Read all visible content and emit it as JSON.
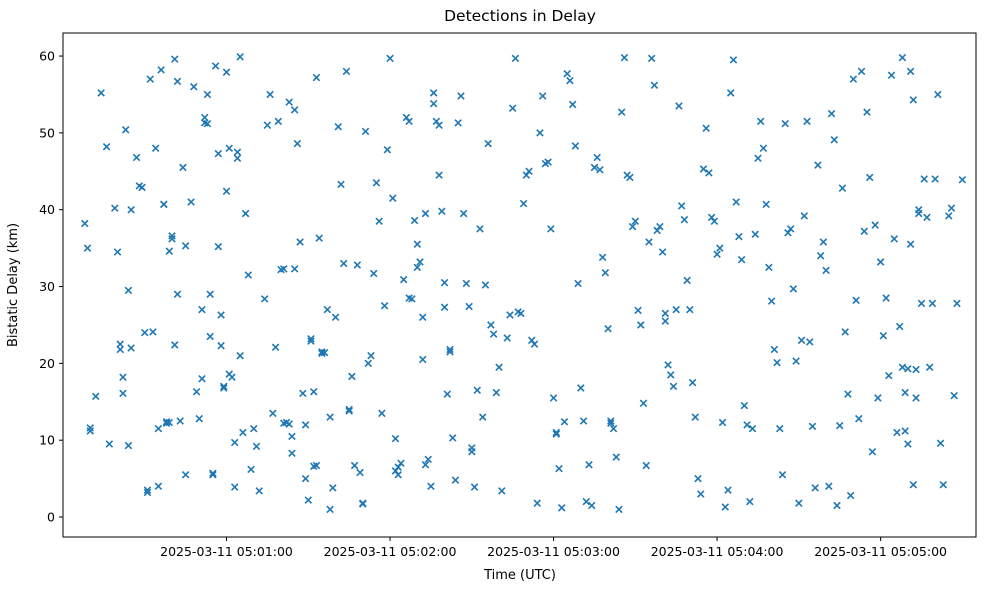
{
  "chart_data": {
    "type": "scatter",
    "title": "Detections in Delay",
    "xlabel": "Time (UTC)",
    "ylabel": "Bistatic Delay (km)",
    "marker": "x",
    "marker_color": "#1f77b4",
    "x_base_time": "2025-03-11 05:00:00",
    "xlim_seconds": [
      0,
      335
    ],
    "ylim": [
      -2.6,
      63
    ],
    "y_ticks": [
      0,
      10,
      20,
      30,
      40,
      50,
      60
    ],
    "x_ticks": [
      {
        "seconds": 60,
        "label": "2025-03-11 05:01:00"
      },
      {
        "seconds": 120,
        "label": "2025-03-11 05:02:00"
      },
      {
        "seconds": 180,
        "label": "2025-03-11 05:03:00"
      },
      {
        "seconds": 240,
        "label": "2025-03-11 05:04:00"
      },
      {
        "seconds": 300,
        "label": "2025-03-11 05:05:00"
      }
    ],
    "grid": false,
    "legend": null,
    "points": [
      [
        8,
        38.2
      ],
      [
        9,
        35.0
      ],
      [
        10,
        11.6
      ],
      [
        10,
        11.2
      ],
      [
        12,
        15.7
      ],
      [
        14,
        55.2
      ],
      [
        16,
        48.2
      ],
      [
        17,
        9.5
      ],
      [
        19,
        40.2
      ],
      [
        20,
        34.5
      ],
      [
        21,
        22.5
      ],
      [
        21,
        21.8
      ],
      [
        22,
        18.2
      ],
      [
        22,
        16.1
      ],
      [
        23,
        50.4
      ],
      [
        24,
        29.5
      ],
      [
        24,
        9.3
      ],
      [
        25,
        40.0
      ],
      [
        25,
        22.0
      ],
      [
        27,
        46.8
      ],
      [
        28,
        43.1
      ],
      [
        29,
        42.9
      ],
      [
        30,
        24.0
      ],
      [
        31,
        3.2
      ],
      [
        31,
        3.5
      ],
      [
        32,
        57.0
      ],
      [
        33,
        24.1
      ],
      [
        34,
        48.0
      ],
      [
        35,
        11.5
      ],
      [
        35,
        4.0
      ],
      [
        36,
        58.2
      ],
      [
        37,
        40.7
      ],
      [
        37,
        40.7
      ],
      [
        38,
        12.2
      ],
      [
        38,
        12.4
      ],
      [
        39,
        12.3
      ],
      [
        39,
        34.6
      ],
      [
        40,
        36.2
      ],
      [
        40,
        36.6
      ],
      [
        41,
        59.6
      ],
      [
        41,
        22.4
      ],
      [
        42,
        56.7
      ],
      [
        42,
        29.0
      ],
      [
        43,
        12.5
      ],
      [
        44,
        45.5
      ],
      [
        45,
        5.5
      ],
      [
        45,
        35.3
      ],
      [
        47,
        41.0
      ],
      [
        48,
        56.0
      ],
      [
        49,
        16.3
      ],
      [
        50,
        12.8
      ],
      [
        51,
        27.0
      ],
      [
        51,
        18.0
      ],
      [
        52,
        52.0
      ],
      [
        52,
        51.3
      ],
      [
        53,
        51.2
      ],
      [
        53,
        55.0
      ],
      [
        54,
        29.0
      ],
      [
        54,
        23.5
      ],
      [
        55,
        5.7
      ],
      [
        55,
        5.5
      ],
      [
        56,
        58.7
      ],
      [
        57,
        47.3
      ],
      [
        57,
        35.2
      ],
      [
        58,
        26.3
      ],
      [
        58,
        22.3
      ],
      [
        59,
        17.0
      ],
      [
        59,
        16.8
      ],
      [
        60,
        57.9
      ],
      [
        60,
        42.4
      ],
      [
        61,
        48.0
      ],
      [
        61,
        18.6
      ],
      [
        62,
        18.2
      ],
      [
        63,
        9.7
      ],
      [
        63,
        3.9
      ],
      [
        64,
        47.5
      ],
      [
        64,
        46.7
      ],
      [
        65,
        59.9
      ],
      [
        65,
        21.0
      ],
      [
        66,
        11.0
      ],
      [
        67,
        39.5
      ],
      [
        68,
        31.5
      ],
      [
        69,
        6.2
      ],
      [
        70,
        11.5
      ],
      [
        71,
        9.2
      ],
      [
        72,
        3.4
      ],
      [
        74,
        28.4
      ],
      [
        75,
        51.0
      ],
      [
        76,
        55.0
      ],
      [
        77,
        13.5
      ],
      [
        78,
        22.1
      ],
      [
        79,
        51.5
      ],
      [
        80,
        32.2
      ],
      [
        81,
        32.3
      ],
      [
        81,
        12.2
      ],
      [
        82,
        12.3
      ],
      [
        83,
        54.0
      ],
      [
        83,
        12.1
      ],
      [
        84,
        10.5
      ],
      [
        84,
        8.3
      ],
      [
        85,
        53.0
      ],
      [
        85,
        32.3
      ],
      [
        86,
        48.6
      ],
      [
        87,
        35.8
      ],
      [
        88,
        16.1
      ],
      [
        89,
        12.0
      ],
      [
        89,
        5.0
      ],
      [
        90,
        2.2
      ],
      [
        91,
        23.2
      ],
      [
        91,
        22.9
      ],
      [
        92,
        16.3
      ],
      [
        92,
        6.6
      ],
      [
        93,
        6.7
      ],
      [
        93,
        57.2
      ],
      [
        94,
        36.3
      ],
      [
        95,
        21.3
      ],
      [
        95,
        21.5
      ],
      [
        96,
        21.4
      ],
      [
        97,
        27.0
      ],
      [
        98,
        13.0
      ],
      [
        98,
        1.0
      ],
      [
        99,
        3.8
      ],
      [
        100,
        26.0
      ],
      [
        101,
        50.8
      ],
      [
        102,
        43.3
      ],
      [
        103,
        33.0
      ],
      [
        104,
        58.0
      ],
      [
        105,
        13.8
      ],
      [
        105,
        14.0
      ],
      [
        106,
        18.3
      ],
      [
        107,
        6.7
      ],
      [
        108,
        32.8
      ],
      [
        109,
        5.8
      ],
      [
        110,
        1.8
      ],
      [
        110,
        1.7
      ],
      [
        111,
        50.2
      ],
      [
        112,
        20.0
      ],
      [
        113,
        21.0
      ],
      [
        114,
        31.7
      ],
      [
        115,
        43.5
      ],
      [
        116,
        38.5
      ],
      [
        117,
        13.5
      ],
      [
        118,
        27.5
      ],
      [
        119,
        47.8
      ],
      [
        120,
        59.7
      ],
      [
        121,
        41.5
      ],
      [
        122,
        10.2
      ],
      [
        122,
        6.0
      ],
      [
        123,
        6.5
      ],
      [
        123,
        5.5
      ],
      [
        124,
        7.0
      ],
      [
        125,
        30.9
      ],
      [
        126,
        52.0
      ],
      [
        127,
        51.5
      ],
      [
        127,
        28.5
      ],
      [
        128,
        28.4
      ],
      [
        129,
        38.6
      ],
      [
        130,
        35.5
      ],
      [
        130,
        32.5
      ],
      [
        131,
        33.2
      ],
      [
        132,
        26.0
      ],
      [
        132,
        20.5
      ],
      [
        133,
        39.5
      ],
      [
        133,
        6.8
      ],
      [
        134,
        7.5
      ],
      [
        135,
        4.0
      ],
      [
        136,
        55.2
      ],
      [
        136,
        53.8
      ],
      [
        137,
        51.5
      ],
      [
        138,
        51.0
      ],
      [
        138,
        44.5
      ],
      [
        139,
        39.8
      ],
      [
        140,
        30.5
      ],
      [
        140,
        27.3
      ],
      [
        141,
        16.0
      ],
      [
        142,
        21.8
      ],
      [
        142,
        21.5
      ],
      [
        143,
        10.3
      ],
      [
        144,
        4.8
      ],
      [
        145,
        51.3
      ],
      [
        146,
        54.8
      ],
      [
        147,
        39.5
      ],
      [
        148,
        30.4
      ],
      [
        149,
        27.4
      ],
      [
        150,
        9.0
      ],
      [
        150,
        8.5
      ],
      [
        151,
        3.9
      ],
      [
        152,
        16.5
      ],
      [
        153,
        37.5
      ],
      [
        154,
        13.0
      ],
      [
        155,
        30.2
      ],
      [
        156,
        48.6
      ],
      [
        157,
        25.0
      ],
      [
        158,
        23.8
      ],
      [
        159,
        16.2
      ],
      [
        160,
        19.5
      ],
      [
        161,
        3.4
      ],
      [
        163,
        23.3
      ],
      [
        164,
        26.3
      ],
      [
        165,
        53.2
      ],
      [
        166,
        59.7
      ],
      [
        167,
        26.7
      ],
      [
        168,
        26.5
      ],
      [
        169,
        40.8
      ],
      [
        170,
        44.5
      ],
      [
        171,
        45.0
      ],
      [
        172,
        23.0
      ],
      [
        173,
        22.5
      ],
      [
        174,
        1.8
      ],
      [
        175,
        50.0
      ],
      [
        176,
        54.8
      ],
      [
        177,
        46.0
      ],
      [
        178,
        46.2
      ],
      [
        179,
        37.5
      ],
      [
        180,
        15.5
      ],
      [
        181,
        11.0
      ],
      [
        181,
        10.8
      ],
      [
        182,
        6.3
      ],
      [
        183,
        1.2
      ],
      [
        184,
        12.4
      ],
      [
        185,
        57.7
      ],
      [
        186,
        56.8
      ],
      [
        187,
        53.7
      ],
      [
        188,
        48.3
      ],
      [
        189,
        30.4
      ],
      [
        190,
        16.8
      ],
      [
        191,
        12.5
      ],
      [
        192,
        2.0
      ],
      [
        193,
        6.8
      ],
      [
        194,
        1.5
      ],
      [
        195,
        45.5
      ],
      [
        196,
        46.8
      ],
      [
        197,
        45.2
      ],
      [
        198,
        33.8
      ],
      [
        199,
        31.8
      ],
      [
        200,
        24.5
      ],
      [
        201,
        12.2
      ],
      [
        201,
        12.5
      ],
      [
        202,
        11.5
      ],
      [
        203,
        7.8
      ],
      [
        204,
        1.0
      ],
      [
        205,
        52.7
      ],
      [
        206,
        59.8
      ],
      [
        207,
        44.5
      ],
      [
        208,
        44.2
      ],
      [
        209,
        37.8
      ],
      [
        210,
        38.5
      ],
      [
        211,
        26.9
      ],
      [
        212,
        25.0
      ],
      [
        213,
        14.8
      ],
      [
        214,
        6.7
      ],
      [
        215,
        35.8
      ],
      [
        216,
        59.7
      ],
      [
        217,
        56.2
      ],
      [
        218,
        37.3
      ],
      [
        219,
        37.8
      ],
      [
        220,
        34.5
      ],
      [
        221,
        25.5
      ],
      [
        221,
        26.5
      ],
      [
        222,
        19.8
      ],
      [
        223,
        18.5
      ],
      [
        224,
        17.0
      ],
      [
        225,
        27.0
      ],
      [
        226,
        53.5
      ],
      [
        227,
        40.5
      ],
      [
        228,
        38.7
      ],
      [
        229,
        30.8
      ],
      [
        230,
        27.0
      ],
      [
        231,
        17.5
      ],
      [
        232,
        13.0
      ],
      [
        233,
        5.0
      ],
      [
        234,
        3.0
      ],
      [
        235,
        45.3
      ],
      [
        236,
        50.6
      ],
      [
        237,
        44.8
      ],
      [
        238,
        39.0
      ],
      [
        239,
        38.5
      ],
      [
        240,
        34.2
      ],
      [
        241,
        35.0
      ],
      [
        242,
        12.3
      ],
      [
        243,
        1.3
      ],
      [
        244,
        3.5
      ],
      [
        245,
        55.2
      ],
      [
        246,
        59.5
      ],
      [
        247,
        41.0
      ],
      [
        248,
        36.5
      ],
      [
        249,
        33.5
      ],
      [
        250,
        14.5
      ],
      [
        251,
        12.0
      ],
      [
        252,
        2.0
      ],
      [
        253,
        11.5
      ],
      [
        254,
        36.8
      ],
      [
        255,
        46.7
      ],
      [
        256,
        51.5
      ],
      [
        257,
        48.0
      ],
      [
        258,
        40.7
      ],
      [
        259,
        32.5
      ],
      [
        260,
        28.1
      ],
      [
        261,
        21.8
      ],
      [
        262,
        20.1
      ],
      [
        263,
        11.5
      ],
      [
        264,
        5.5
      ],
      [
        265,
        51.2
      ],
      [
        266,
        37.0
      ],
      [
        267,
        37.5
      ],
      [
        268,
        29.7
      ],
      [
        269,
        20.3
      ],
      [
        270,
        1.8
      ],
      [
        271,
        23.0
      ],
      [
        272,
        39.2
      ],
      [
        273,
        51.5
      ],
      [
        274,
        22.8
      ],
      [
        275,
        11.8
      ],
      [
        276,
        3.8
      ],
      [
        277,
        45.8
      ],
      [
        278,
        34.0
      ],
      [
        279,
        35.8
      ],
      [
        280,
        32.1
      ],
      [
        281,
        4.0
      ],
      [
        282,
        52.5
      ],
      [
        283,
        49.1
      ],
      [
        284,
        1.5
      ],
      [
        285,
        11.9
      ],
      [
        286,
        42.8
      ],
      [
        287,
        24.1
      ],
      [
        288,
        16.0
      ],
      [
        289,
        2.8
      ],
      [
        290,
        57.0
      ],
      [
        291,
        28.2
      ],
      [
        292,
        12.8
      ],
      [
        293,
        58.0
      ],
      [
        294,
        37.2
      ],
      [
        295,
        52.7
      ],
      [
        296,
        44.2
      ],
      [
        297,
        8.5
      ],
      [
        298,
        38.0
      ],
      [
        299,
        15.5
      ],
      [
        300,
        33.2
      ],
      [
        301,
        23.6
      ],
      [
        302,
        28.5
      ],
      [
        303,
        18.4
      ],
      [
        304,
        57.5
      ],
      [
        305,
        36.2
      ],
      [
        306,
        11.0
      ],
      [
        307,
        24.8
      ],
      [
        308,
        59.8
      ],
      [
        308,
        19.5
      ],
      [
        309,
        16.2
      ],
      [
        309,
        11.2
      ],
      [
        310,
        9.5
      ],
      [
        310,
        19.3
      ],
      [
        311,
        58.0
      ],
      [
        311,
        35.5
      ],
      [
        312,
        54.3
      ],
      [
        312,
        4.2
      ],
      [
        313,
        15.5
      ],
      [
        313,
        19.2
      ],
      [
        314,
        39.5
      ],
      [
        314,
        40.0
      ],
      [
        315,
        27.8
      ],
      [
        316,
        44.0
      ],
      [
        317,
        39.0
      ],
      [
        318,
        19.5
      ],
      [
        319,
        27.8
      ],
      [
        320,
        44.0
      ],
      [
        321,
        55.0
      ],
      [
        322,
        9.6
      ],
      [
        323,
        4.2
      ],
      [
        325,
        39.2
      ],
      [
        326,
        40.2
      ],
      [
        327,
        15.8
      ],
      [
        328,
        27.8
      ],
      [
        330,
        43.9
      ]
    ]
  }
}
